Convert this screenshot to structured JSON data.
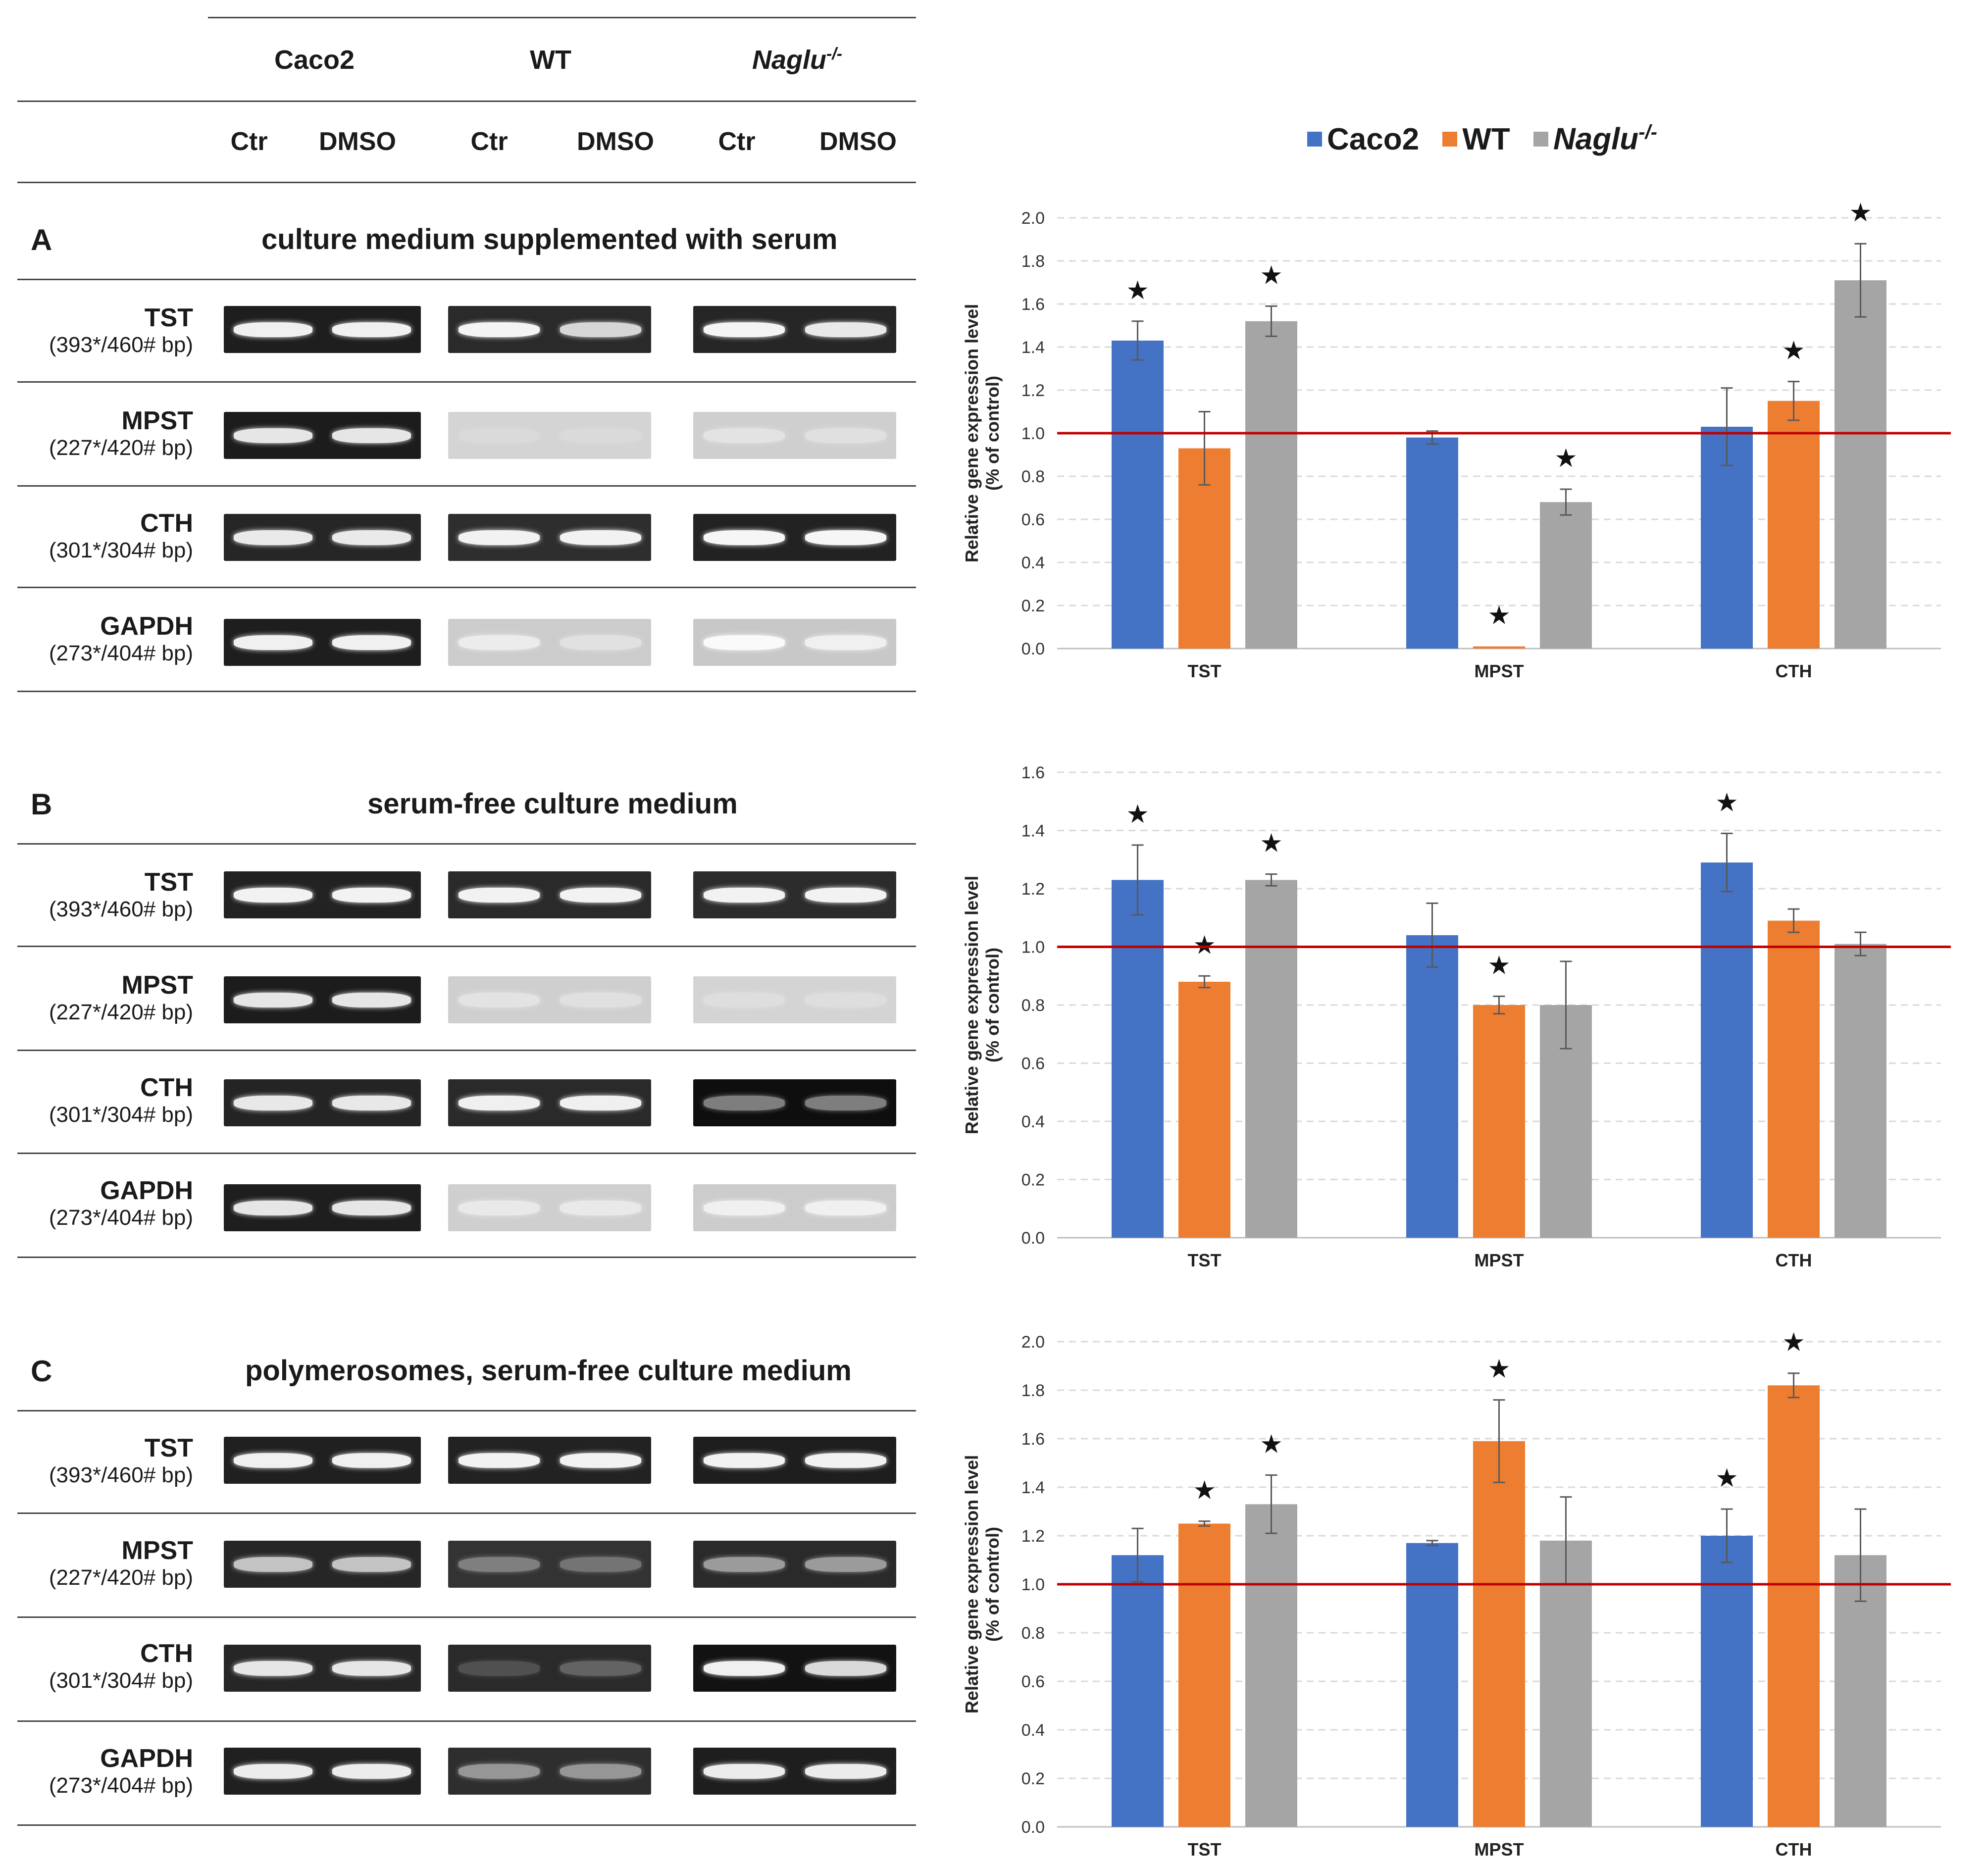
{
  "table_header": {
    "groups": [
      "Caco2",
      "WT",
      "Naglu"
    ],
    "naglu_superscript": "-/-",
    "conditions": [
      "Ctr",
      "DMSO",
      "Ctr",
      "DMSO",
      "Ctr",
      "DMSO"
    ]
  },
  "panels": [
    {
      "letter": "A",
      "title": "culture medium supplemented with serum"
    },
    {
      "letter": "B",
      "title": "serum-free culture medium"
    },
    {
      "letter": "C",
      "title": "polymerosomes, serum-free culture medium"
    }
  ],
  "genes": [
    {
      "name": "TST",
      "bp": "(393*/460# bp)"
    },
    {
      "name": "MPST",
      "bp": "(227*/420# bp)"
    },
    {
      "name": "CTH",
      "bp": "(301*/304# bp)"
    },
    {
      "name": "GAPDH",
      "bp": "(273*/404# bp)"
    }
  ],
  "legend": {
    "items": [
      {
        "label": "Caco2",
        "color": "#4472C4"
      },
      {
        "label": "WT",
        "color": "#ED7D31"
      },
      {
        "label": "Naglu",
        "color": "#A5A5A5",
        "superscript": "-/-"
      }
    ]
  },
  "colors": {
    "caco2": "#4472C4",
    "wt": "#ED7D31",
    "naglu": "#A5A5A5",
    "reference_line": "#C00000"
  },
  "chart_data": [
    {
      "panel": "A",
      "type": "bar",
      "ylabel": "Relative gene expression level",
      "ylabel2": "(% of control)",
      "categories": [
        "TST",
        "MPST",
        "CTH"
      ],
      "ylim": [
        0,
        2.0
      ],
      "yticks": [
        "0.0",
        "0.2",
        "0.4",
        "0.6",
        "0.8",
        "1.0",
        "1.2",
        "1.4",
        "1.6",
        "1.8",
        "2.0"
      ],
      "reference_line": 1.0,
      "series": [
        {
          "name": "Caco2",
          "values": [
            1.43,
            0.98,
            1.03
          ],
          "errors": [
            0.09,
            0.03,
            0.18
          ],
          "significant": [
            true,
            false,
            false
          ]
        },
        {
          "name": "WT",
          "values": [
            0.93,
            0.01,
            1.15
          ],
          "errors": [
            0.17,
            0.0,
            0.09
          ],
          "significant": [
            false,
            true,
            true
          ]
        },
        {
          "name": "Naglu-/-",
          "values": [
            1.52,
            0.68,
            1.71
          ],
          "errors": [
            0.07,
            0.06,
            0.17
          ],
          "significant": [
            true,
            true,
            true
          ]
        }
      ]
    },
    {
      "panel": "B",
      "type": "bar",
      "ylabel": "Relative gene expression level",
      "ylabel2": "(% of control)",
      "categories": [
        "TST",
        "MPST",
        "CTH"
      ],
      "ylim": [
        0,
        1.6
      ],
      "yticks": [
        "0.0",
        "0.2",
        "0.4",
        "0.6",
        "0.8",
        "1.0",
        "1.2",
        "1.4",
        "1.6"
      ],
      "reference_line": 1.0,
      "series": [
        {
          "name": "Caco2",
          "values": [
            1.23,
            1.04,
            1.29
          ],
          "errors": [
            0.12,
            0.11,
            0.1
          ],
          "significant": [
            true,
            false,
            true
          ]
        },
        {
          "name": "WT",
          "values": [
            0.88,
            0.8,
            1.09
          ],
          "errors": [
            0.02,
            0.03,
            0.04
          ],
          "significant": [
            true,
            true,
            false
          ]
        },
        {
          "name": "Naglu-/-",
          "values": [
            1.23,
            0.8,
            1.01
          ],
          "errors": [
            0.02,
            0.15,
            0.04
          ],
          "significant": [
            true,
            false,
            false
          ]
        }
      ]
    },
    {
      "panel": "C",
      "type": "bar",
      "ylabel": "Relative gene expression level",
      "ylabel2": "(% of control)",
      "categories": [
        "TST",
        "MPST",
        "CTH"
      ],
      "ylim": [
        0,
        2.0
      ],
      "yticks": [
        "0.0",
        "0.2",
        "0.4",
        "0.6",
        "0.8",
        "1.0",
        "1.2",
        "1.4",
        "1.6",
        "1.8",
        "2.0"
      ],
      "reference_line": 1.0,
      "series": [
        {
          "name": "Caco2",
          "values": [
            1.12,
            1.17,
            1.2
          ],
          "errors": [
            0.11,
            0.01,
            0.11
          ],
          "significant": [
            false,
            false,
            true
          ]
        },
        {
          "name": "WT",
          "values": [
            1.25,
            1.59,
            1.82
          ],
          "errors": [
            0.01,
            0.17,
            0.05
          ],
          "significant": [
            true,
            true,
            true
          ]
        },
        {
          "name": "Naglu-/-",
          "values": [
            1.33,
            1.18,
            1.12
          ],
          "errors": [
            0.12,
            0.18,
            0.19
          ],
          "significant": [
            true,
            false,
            false
          ]
        }
      ]
    }
  ],
  "gels": {
    "A": [
      [
        {
          "bg": "#1e1e1e",
          "band": "#f0f0f0",
          "lanes": [
            1,
            1
          ]
        },
        {
          "bg": "#2a2a2a",
          "band": "#f4f4f4",
          "lanes": [
            1,
            0.85
          ]
        },
        {
          "bg": "#262626",
          "band": "#f4f4f4",
          "lanes": [
            1,
            0.95
          ]
        }
      ],
      [
        {
          "bg": "#1c1c1c",
          "band": "#e6e6e6",
          "lanes": [
            1,
            1
          ]
        },
        {
          "bg": "#d4d4d4",
          "band": "#e0e0e0",
          "lanes": [
            0.5,
            0.5
          ]
        },
        {
          "bg": "#cfcfcf",
          "band": "#e8e8e8",
          "lanes": [
            0.8,
            0.7
          ]
        }
      ],
      [
        {
          "bg": "#262626",
          "band": "#eaeaea",
          "lanes": [
            1,
            1
          ]
        },
        {
          "bg": "#2e2e2e",
          "band": "#f2f2f2",
          "lanes": [
            1,
            1
          ]
        },
        {
          "bg": "#222222",
          "band": "#f6f6f6",
          "lanes": [
            1,
            1
          ]
        }
      ],
      [
        {
          "bg": "#1e1e1e",
          "band": "#f0f0f0",
          "lanes": [
            1,
            1
          ]
        },
        {
          "bg": "#cccccc",
          "band": "#f0f0f0",
          "lanes": [
            0.9,
            0.6
          ]
        },
        {
          "bg": "#c8c8c8",
          "band": "#fafafa",
          "lanes": [
            1,
            0.8
          ]
        }
      ]
    ],
    "B": [
      [
        {
          "bg": "#222222",
          "band": "#f2f2f2",
          "lanes": [
            1,
            1
          ]
        },
        {
          "bg": "#2a2a2a",
          "band": "#f2f2f2",
          "lanes": [
            1,
            1
          ]
        },
        {
          "bg": "#2c2c2c",
          "band": "#f2f2f2",
          "lanes": [
            1,
            1
          ]
        }
      ],
      [
        {
          "bg": "#1c1c1c",
          "band": "#e6e6e6",
          "lanes": [
            1,
            1
          ]
        },
        {
          "bg": "#cfcfcf",
          "band": "#e8e8e8",
          "lanes": [
            0.8,
            0.7
          ]
        },
        {
          "bg": "#d4d4d4",
          "band": "#e6e6e6",
          "lanes": [
            0.6,
            0.6
          ]
        }
      ],
      [
        {
          "bg": "#242424",
          "band": "#e8e8e8",
          "lanes": [
            1,
            1
          ]
        },
        {
          "bg": "#2a2a2a",
          "band": "#f0f0f0",
          "lanes": [
            1,
            1
          ]
        },
        {
          "bg": "#0e0e0e",
          "band": "#9a9a9a",
          "lanes": [
            0.8,
            0.8
          ]
        }
      ],
      [
        {
          "bg": "#1e1e1e",
          "band": "#e6e6e6",
          "lanes": [
            1,
            1
          ]
        },
        {
          "bg": "#cfcfcf",
          "band": "#f0f0f0",
          "lanes": [
            0.8,
            0.8
          ]
        },
        {
          "bg": "#cccccc",
          "band": "#f4f4f4",
          "lanes": [
            0.9,
            0.9
          ]
        }
      ]
    ],
    "C": [
      [
        {
          "bg": "#202020",
          "band": "#f0f0f0",
          "lanes": [
            1,
            1
          ]
        },
        {
          "bg": "#222222",
          "band": "#f2f2f2",
          "lanes": [
            1,
            1
          ]
        },
        {
          "bg": "#1e1e1e",
          "band": "#f2f2f2",
          "lanes": [
            1,
            1
          ]
        }
      ],
      [
        {
          "bg": "#262626",
          "band": "#d4d4d4",
          "lanes": [
            0.9,
            0.9
          ]
        },
        {
          "bg": "#333333",
          "band": "#a0a0a0",
          "lanes": [
            0.7,
            0.6
          ]
        },
        {
          "bg": "#2a2a2a",
          "band": "#b8b8b8",
          "lanes": [
            0.8,
            0.8
          ]
        }
      ],
      [
        {
          "bg": "#262626",
          "band": "#e6e6e6",
          "lanes": [
            1,
            1
          ]
        },
        {
          "bg": "#2a2a2a",
          "band": "#8a8a8a",
          "lanes": [
            0.4,
            0.6
          ]
        },
        {
          "bg": "#121212",
          "band": "#f0f0f0",
          "lanes": [
            1,
            0.9
          ]
        }
      ],
      [
        {
          "bg": "#202020",
          "band": "#ececec",
          "lanes": [
            1,
            1
          ]
        },
        {
          "bg": "#2e2e2e",
          "band": "#b0b0b0",
          "lanes": [
            0.8,
            0.8
          ]
        },
        {
          "bg": "#1e1e1e",
          "band": "#ececec",
          "lanes": [
            1,
            1
          ]
        }
      ]
    ]
  }
}
